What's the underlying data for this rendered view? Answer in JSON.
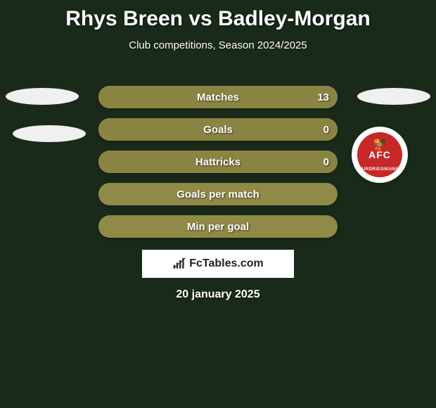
{
  "title": "Rhys Breen vs Badley-Morgan",
  "subtitle": "Club competitions, Season 2024/2025",
  "colors": {
    "background": "#1a2a1a",
    "bar_fill_light": "#b0a85e",
    "bar_fill_dark": "#8a8442",
    "bar_fill_full": "#8f8a47",
    "text": "#ffffff",
    "watermark_bg": "#ffffff",
    "logo_red": "#c62828"
  },
  "stats": [
    {
      "label": "Matches",
      "left_value": "",
      "right_value": "13",
      "fill_left_pct": 0,
      "fill_right_pct": 100,
      "base_color": "#b0a85e",
      "fill_color": "#8a8442"
    },
    {
      "label": "Goals",
      "left_value": "",
      "right_value": "0",
      "fill_left_pct": 0,
      "fill_right_pct": 100,
      "base_color": "#b0a85e",
      "fill_color": "#8a8442"
    },
    {
      "label": "Hattricks",
      "left_value": "",
      "right_value": "0",
      "fill_left_pct": 0,
      "fill_right_pct": 100,
      "base_color": "#b0a85e",
      "fill_color": "#8a8442"
    },
    {
      "label": "Goals per match",
      "left_value": "",
      "right_value": "",
      "fill_left_pct": 0,
      "fill_right_pct": 0,
      "base_color": "#8f8a47",
      "fill_color": "#8f8a47"
    },
    {
      "label": "Min per goal",
      "left_value": "",
      "right_value": "",
      "fill_left_pct": 0,
      "fill_right_pct": 0,
      "base_color": "#8f8a47",
      "fill_color": "#8f8a47"
    }
  ],
  "watermark": {
    "text": "FcTables.com"
  },
  "date": "20 january 2025",
  "logo": {
    "text": "AFC",
    "banner": "AIRDRIEONIANS"
  }
}
